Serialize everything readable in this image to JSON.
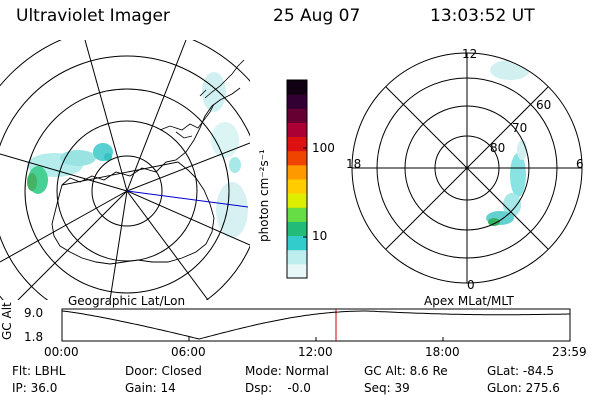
{
  "header": {
    "instrument": "Ultraviolet Imager",
    "date": "25 Aug 07",
    "time": "13:03:52 UT"
  },
  "colorbar": {
    "unit_label": "photon cm⁻²s⁻¹",
    "ticks": [
      "100",
      "10"
    ],
    "colors": [
      "#e8f8f8",
      "#bfeeee",
      "#33cccc",
      "#22bb77",
      "#66dd44",
      "#ddee00",
      "#ffcc00",
      "#ff9900",
      "#ee4400",
      "#dd1111",
      "#aa0033",
      "#660033",
      "#330033",
      "#110011"
    ]
  },
  "left_panel": {
    "caption": "Geographic Lat/Lon",
    "view": "polar map of Antarctica with auroral emission"
  },
  "right_panel": {
    "caption": "Apex MLat/MLT",
    "mlt_labels": [
      "12",
      "18",
      "6",
      "0"
    ],
    "mlat_labels": [
      "60",
      "70",
      "80"
    ]
  },
  "altitude_plot": {
    "ylabel": "GC Alt",
    "yticks": [
      "9.0",
      "1.8"
    ],
    "xticks": [
      "00:00",
      "06:00",
      "12:00",
      "18:00",
      "23:59"
    ],
    "current_time_marker": "13:03"
  },
  "status": {
    "row1": {
      "filter": "Flt: LBHL",
      "door": "Door: Closed",
      "mode": "Mode: Normal",
      "gc_alt": "GC Alt: 8.6 Re",
      "glat": "GLat: -84.5"
    },
    "row2": {
      "ip": "IP: 36.0",
      "gain": "Gain: 14",
      "dsp": "Dsp:    -0.0",
      "seq": "Seq: 39",
      "glon": "GLon: 275.6"
    }
  }
}
